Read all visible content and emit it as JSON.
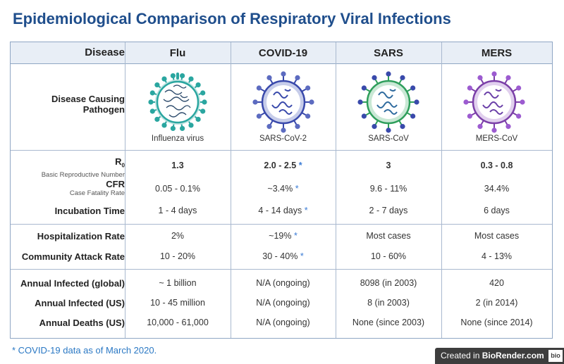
{
  "title": "Epidemiological Comparison of Respiratory Viral Infections",
  "header": {
    "disease": "Disease",
    "diseases": [
      "Flu",
      "COVID-19",
      "SARS",
      "MERS"
    ]
  },
  "pathogen_label": [
    "Disease Causing",
    "Pathogen"
  ],
  "pathogens": [
    "Influenza virus",
    "SARS-CoV-2",
    "SARS-CoV",
    "MERS-CoV"
  ],
  "rows": {
    "r0": {
      "label": "R",
      "sub_label": "0",
      "desc": "Basic Reproductive Number",
      "values": [
        "1.3",
        "2.0 - 2.5",
        "3",
        "0.3 - 0.8"
      ]
    },
    "cfr": {
      "label": "CFR",
      "desc": "Case Fatality Rate",
      "values": [
        "0.05 - 0.1%",
        "~3.4%",
        "9.6 - 11%",
        "34.4%"
      ]
    },
    "incubation": {
      "label": "Incubation Time",
      "values": [
        "1 - 4 days",
        "4 - 14 days",
        "2 - 7 days",
        "6 days"
      ]
    },
    "hospitalization": {
      "label": "Hospitalization Rate",
      "values": [
        "2%",
        "~19%",
        "Most cases",
        "Most cases"
      ]
    },
    "attack": {
      "label": "Community Attack Rate",
      "values": [
        "10 - 20%",
        "30 - 40%",
        "10 - 60%",
        "4 - 13%"
      ]
    },
    "annual_global": {
      "label": "Annual Infected (global)",
      "values": [
        "~ 1 billion",
        "N/A (ongoing)",
        "8098 (in 2003)",
        "420"
      ]
    },
    "annual_us": {
      "label": "Annual Infected (US)",
      "values": [
        "10 - 45 million",
        "N/A (ongoing)",
        "8 (in 2003)",
        "2 (in 2014)"
      ]
    },
    "deaths_us": {
      "label": "Annual Deaths (US)",
      "values": [
        "10,000 - 61,000",
        "N/A (ongoing)",
        "None (since 2003)",
        "None (since 2014)"
      ]
    }
  },
  "star": "*",
  "footnote": "* COVID-19 data as of March 2020.",
  "badge": {
    "prefix": "Created in ",
    "brand": "BioRender.com",
    "logo": "bio"
  },
  "colors": {
    "title": "#1f4e8c",
    "accent": "#3a7bd5",
    "header_bg": "#e8eef6",
    "flu": "#2aa6a0",
    "covid": "#3949ab",
    "sars": "#2e9e5b",
    "mers": "#7b3fa8"
  }
}
